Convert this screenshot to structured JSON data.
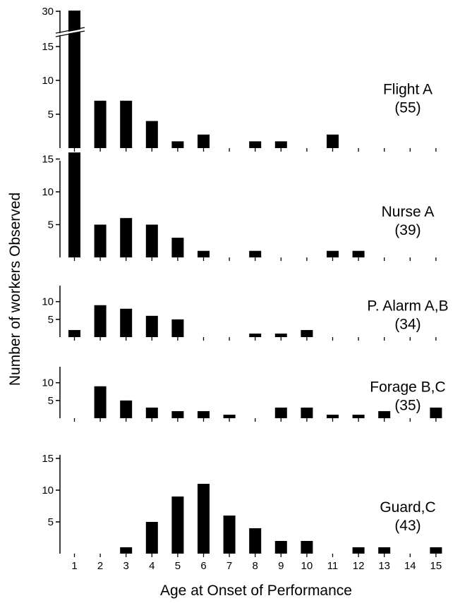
{
  "chart_data": {
    "type": "bar",
    "ylabel": "Number of workers Observed",
    "xlabel": "Age at Onset of Performance",
    "categories": [
      "1",
      "2",
      "3",
      "4",
      "5",
      "6",
      "7",
      "8",
      "9",
      "10",
      "11",
      "12",
      "13",
      "14",
      "15"
    ],
    "panels": [
      {
        "name": "Flight A",
        "count_label": "(55)",
        "values": [
          30,
          7,
          7,
          4,
          1,
          2,
          0,
          1,
          1,
          0,
          2,
          0,
          0,
          0,
          0
        ],
        "axis_break": true,
        "yticks": [
          5,
          10,
          15,
          30
        ],
        "ylim": [
          0,
          17
        ]
      },
      {
        "name": "Nurse A",
        "count_label": "(39)",
        "values": [
          16,
          5,
          6,
          5,
          3,
          1,
          0,
          1,
          0,
          0,
          1,
          1,
          0,
          0,
          0
        ],
        "yticks": [
          5,
          10,
          15
        ],
        "ylim": [
          0,
          17
        ]
      },
      {
        "name": "P. Alarm A,B",
        "count_label": "(34)",
        "values": [
          2,
          9,
          8,
          6,
          5,
          0,
          0,
          1,
          1,
          2,
          0,
          0,
          0,
          0,
          0
        ],
        "yticks": [
          5,
          10
        ],
        "ylim": [
          0,
          10.5
        ]
      },
      {
        "name": "Forage B,C",
        "count_label": "(35)",
        "values": [
          0,
          9,
          5,
          3,
          2,
          2,
          1,
          0,
          3,
          3,
          1,
          1,
          2,
          0,
          3
        ],
        "yticks": [
          5,
          10
        ],
        "ylim": [
          0,
          10.5
        ]
      },
      {
        "name": "Guard,C",
        "count_label": "(43)",
        "values": [
          0,
          0,
          1,
          5,
          9,
          11,
          6,
          4,
          2,
          2,
          0,
          1,
          1,
          0,
          1
        ],
        "yticks": [
          5,
          10,
          15
        ],
        "ylim": [
          0,
          15.5
        ]
      }
    ]
  }
}
